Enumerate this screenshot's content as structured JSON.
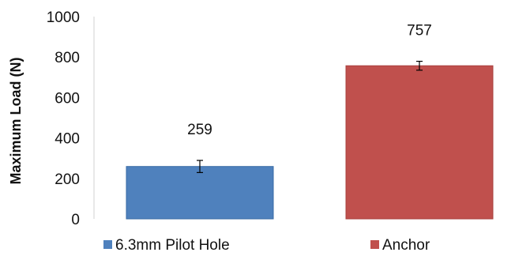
{
  "chart_data": {
    "type": "bar",
    "title": "",
    "xlabel": "",
    "ylabel": "Maximum Load (N)",
    "ylim": [
      0,
      1000
    ],
    "yticks": [
      0,
      200,
      400,
      600,
      800,
      1000
    ],
    "grid": false,
    "legend_position": "bottom",
    "categories": [
      "6.3mm Pilot Hole",
      "Anchor"
    ],
    "series": [
      {
        "name": "6.3mm Pilot Hole",
        "value": 259,
        "error": 30,
        "label": "259",
        "color": "#4F81BD"
      },
      {
        "name": "Anchor",
        "value": 757,
        "error": 22,
        "label": "757",
        "color": "#C0504D"
      }
    ]
  }
}
